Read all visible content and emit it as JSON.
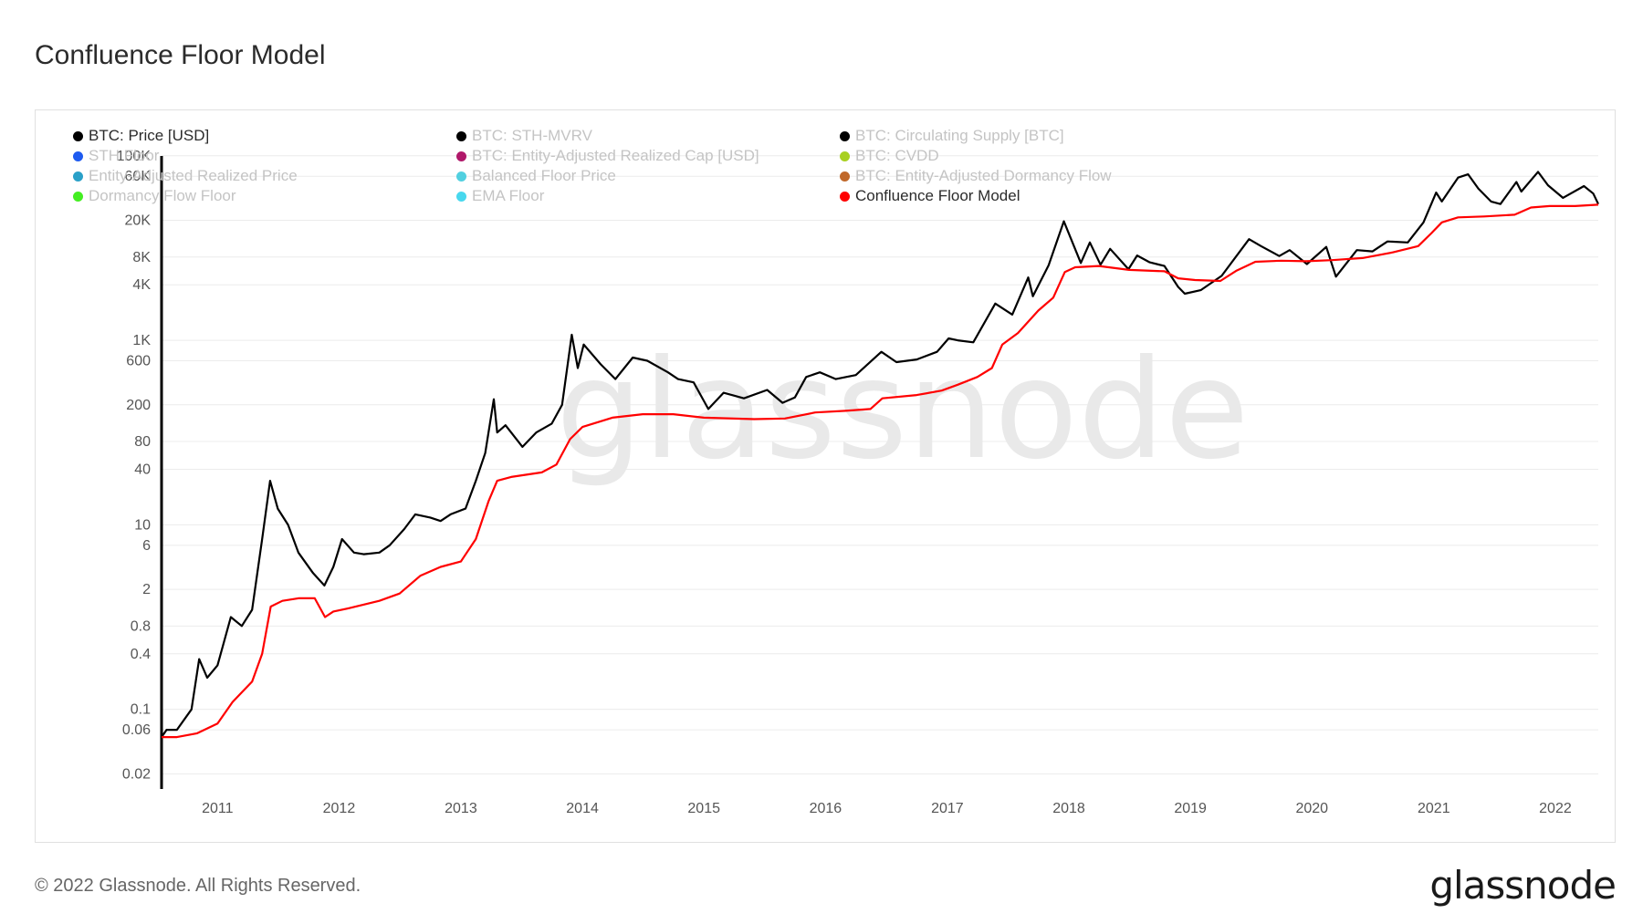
{
  "title": "Confluence Floor Model",
  "footer": {
    "copyright": "© 2022 Glassnode. All Rights Reserved.",
    "logo": "glassnode"
  },
  "watermark": "glassnode",
  "legend": [
    {
      "label": "BTC: Price [USD]",
      "color": "#000000",
      "active": true
    },
    {
      "label": "BTC: STH-MVRV",
      "color": "#000000",
      "active": false
    },
    {
      "label": "BTC: Circulating Supply [BTC]",
      "color": "#000000",
      "active": false
    },
    {
      "label": "STH Floor",
      "color": "#1e5bf0",
      "active": false
    },
    {
      "label": "BTC: Entity-Adjusted Realized Cap [USD]",
      "color": "#b0186a",
      "active": false
    },
    {
      "label": "BTC: CVDD",
      "color": "#a8d020",
      "active": false
    },
    {
      "label": "Entity-Adjusted Realized Price",
      "color": "#2aa0c8",
      "active": false
    },
    {
      "label": "Balanced Floor Price",
      "color": "#52d0e0",
      "active": false
    },
    {
      "label": "BTC: Entity-Adjusted Dormancy Flow",
      "color": "#c0682a",
      "active": false
    },
    {
      "label": "Dormancy Flow Floor",
      "color": "#44ee22",
      "active": false
    },
    {
      "label": "EMA Floor",
      "color": "#48d8ee",
      "active": false
    },
    {
      "label": "Confluence Floor Model",
      "color": "#ff0000",
      "active": true
    }
  ],
  "chart_data": {
    "type": "line",
    "y_scale": "log",
    "x_ticks": [
      "2011",
      "2012",
      "2013",
      "2014",
      "2015",
      "2016",
      "2017",
      "2018",
      "2019",
      "2020",
      "2021",
      "2022"
    ],
    "y_ticks": [
      {
        "value": 100000,
        "label": "100K"
      },
      {
        "value": 60000,
        "label": "60K"
      },
      {
        "value": 20000,
        "label": "20K"
      },
      {
        "value": 8000,
        "label": "8K"
      },
      {
        "value": 4000,
        "label": "4K"
      },
      {
        "value": 1000,
        "label": "1K"
      },
      {
        "value": 600,
        "label": "600"
      },
      {
        "value": 200,
        "label": "200"
      },
      {
        "value": 80,
        "label": "80"
      },
      {
        "value": 40,
        "label": "40"
      },
      {
        "value": 10,
        "label": "10"
      },
      {
        "value": 6,
        "label": "6"
      },
      {
        "value": 2,
        "label": "2"
      },
      {
        "value": 0.8,
        "label": "0.8"
      },
      {
        "value": 0.4,
        "label": "0.4"
      },
      {
        "value": 0.1,
        "label": "0.1"
      },
      {
        "value": 0.06,
        "label": "0.06"
      },
      {
        "value": 0.02,
        "label": "0.02"
      }
    ],
    "x_range": [
      "2010-07-17",
      "2022-05-10"
    ],
    "y_range": [
      0.015,
      150000
    ],
    "series": [
      {
        "name": "BTC: Price [USD]",
        "color": "#000000",
        "points": [
          [
            "2010-07-17",
            0.05
          ],
          [
            "2010-08-01",
            0.06
          ],
          [
            "2010-09-01",
            0.06
          ],
          [
            "2010-10-15",
            0.1
          ],
          [
            "2010-11-07",
            0.35
          ],
          [
            "2010-12-01",
            0.22
          ],
          [
            "2011-01-01",
            0.3
          ],
          [
            "2011-02-10",
            1.0
          ],
          [
            "2011-03-15",
            0.8
          ],
          [
            "2011-04-15",
            1.2
          ],
          [
            "2011-05-15",
            7
          ],
          [
            "2011-06-08",
            30
          ],
          [
            "2011-07-01",
            15
          ],
          [
            "2011-08-01",
            10
          ],
          [
            "2011-09-01",
            5
          ],
          [
            "2011-10-15",
            3
          ],
          [
            "2011-11-18",
            2.2
          ],
          [
            "2011-12-15",
            3.5
          ],
          [
            "2012-01-10",
            7
          ],
          [
            "2012-02-15",
            5
          ],
          [
            "2012-03-15",
            4.8
          ],
          [
            "2012-05-01",
            5
          ],
          [
            "2012-06-01",
            6
          ],
          [
            "2012-07-15",
            9
          ],
          [
            "2012-08-17",
            13
          ],
          [
            "2012-10-01",
            12
          ],
          [
            "2012-11-01",
            11
          ],
          [
            "2012-12-01",
            13
          ],
          [
            "2013-01-15",
            15
          ],
          [
            "2013-02-15",
            30
          ],
          [
            "2013-03-15",
            60
          ],
          [
            "2013-04-10",
            230
          ],
          [
            "2013-04-20",
            100
          ],
          [
            "2013-05-15",
            120
          ],
          [
            "2013-07-05",
            70
          ],
          [
            "2013-08-15",
            100
          ],
          [
            "2013-10-01",
            125
          ],
          [
            "2013-11-01",
            200
          ],
          [
            "2013-11-30",
            1150
          ],
          [
            "2013-12-18",
            500
          ],
          [
            "2014-01-05",
            900
          ],
          [
            "2014-02-25",
            550
          ],
          [
            "2014-04-10",
            380
          ],
          [
            "2014-06-01",
            650
          ],
          [
            "2014-07-15",
            600
          ],
          [
            "2014-09-15",
            450
          ],
          [
            "2014-10-15",
            380
          ],
          [
            "2014-12-01",
            350
          ],
          [
            "2015-01-14",
            180
          ],
          [
            "2015-03-01",
            270
          ],
          [
            "2015-05-01",
            235
          ],
          [
            "2015-07-10",
            290
          ],
          [
            "2015-08-25",
            210
          ],
          [
            "2015-10-01",
            240
          ],
          [
            "2015-11-04",
            400
          ],
          [
            "2015-12-15",
            450
          ],
          [
            "2016-02-01",
            380
          ],
          [
            "2016-04-01",
            420
          ],
          [
            "2016-06-17",
            750
          ],
          [
            "2016-08-01",
            580
          ],
          [
            "2016-10-01",
            620
          ],
          [
            "2016-12-01",
            750
          ],
          [
            "2017-01-05",
            1050
          ],
          [
            "2017-02-01",
            1000
          ],
          [
            "2017-03-20",
            950
          ],
          [
            "2017-05-25",
            2500
          ],
          [
            "2017-07-15",
            1900
          ],
          [
            "2017-09-01",
            4800
          ],
          [
            "2017-09-15",
            3000
          ],
          [
            "2017-11-01",
            6500
          ],
          [
            "2017-12-17",
            19500
          ],
          [
            "2018-02-06",
            6900
          ],
          [
            "2018-03-05",
            11500
          ],
          [
            "2018-04-06",
            6600
          ],
          [
            "2018-05-05",
            9800
          ],
          [
            "2018-06-29",
            5900
          ],
          [
            "2018-07-25",
            8300
          ],
          [
            "2018-09-01",
            7000
          ],
          [
            "2018-10-15",
            6400
          ],
          [
            "2018-11-25",
            3800
          ],
          [
            "2018-12-15",
            3200
          ],
          [
            "2019-02-01",
            3500
          ],
          [
            "2019-04-05",
            5000
          ],
          [
            "2019-06-26",
            12500
          ],
          [
            "2019-08-01",
            10500
          ],
          [
            "2019-09-25",
            8200
          ],
          [
            "2019-10-26",
            9500
          ],
          [
            "2019-12-17",
            6700
          ],
          [
            "2020-02-13",
            10300
          ],
          [
            "2020-03-13",
            4900
          ],
          [
            "2020-05-15",
            9500
          ],
          [
            "2020-07-01",
            9200
          ],
          [
            "2020-08-15",
            11800
          ],
          [
            "2020-10-15",
            11500
          ],
          [
            "2020-12-01",
            19000
          ],
          [
            "2021-01-08",
            40000
          ],
          [
            "2021-01-25",
            32000
          ],
          [
            "2021-03-15",
            58000
          ],
          [
            "2021-04-14",
            63000
          ],
          [
            "2021-05-15",
            44000
          ],
          [
            "2021-06-22",
            32000
          ],
          [
            "2021-07-20",
            30000
          ],
          [
            "2021-09-06",
            52000
          ],
          [
            "2021-09-21",
            41000
          ],
          [
            "2021-11-10",
            67000
          ],
          [
            "2021-12-10",
            48000
          ],
          [
            "2022-01-24",
            35000
          ],
          [
            "2022-03-28",
            47000
          ],
          [
            "2022-04-25",
            39000
          ],
          [
            "2022-05-10",
            30000
          ]
        ]
      },
      {
        "name": "Confluence Floor Model",
        "color": "#ff0000",
        "points": [
          [
            "2010-07-17",
            0.05
          ],
          [
            "2010-09-01",
            0.05
          ],
          [
            "2010-11-01",
            0.055
          ],
          [
            "2011-01-01",
            0.07
          ],
          [
            "2011-02-15",
            0.12
          ],
          [
            "2011-04-15",
            0.2
          ],
          [
            "2011-05-15",
            0.4
          ],
          [
            "2011-06-10",
            1.3
          ],
          [
            "2011-07-15",
            1.5
          ],
          [
            "2011-09-01",
            1.6
          ],
          [
            "2011-10-20",
            1.6
          ],
          [
            "2011-11-20",
            1.0
          ],
          [
            "2011-12-15",
            1.15
          ],
          [
            "2012-02-01",
            1.25
          ],
          [
            "2012-05-01",
            1.5
          ],
          [
            "2012-07-01",
            1.8
          ],
          [
            "2012-09-01",
            2.8
          ],
          [
            "2012-11-01",
            3.5
          ],
          [
            "2013-01-01",
            4.0
          ],
          [
            "2013-02-15",
            7
          ],
          [
            "2013-03-25",
            18
          ],
          [
            "2013-04-20",
            30
          ],
          [
            "2013-06-01",
            33
          ],
          [
            "2013-09-01",
            37
          ],
          [
            "2013-10-15",
            45
          ],
          [
            "2013-11-25",
            85
          ],
          [
            "2014-01-01",
            115
          ],
          [
            "2014-04-01",
            145
          ],
          [
            "2014-07-01",
            158
          ],
          [
            "2014-10-01",
            158
          ],
          [
            "2015-01-01",
            145
          ],
          [
            "2015-06-01",
            140
          ],
          [
            "2015-09-01",
            142
          ],
          [
            "2015-12-01",
            165
          ],
          [
            "2016-03-01",
            172
          ],
          [
            "2016-05-15",
            180
          ],
          [
            "2016-06-20",
            235
          ],
          [
            "2016-10-01",
            255
          ],
          [
            "2016-12-15",
            285
          ],
          [
            "2017-02-01",
            330
          ],
          [
            "2017-04-01",
            400
          ],
          [
            "2017-05-15",
            500
          ],
          [
            "2017-06-15",
            900
          ],
          [
            "2017-08-01",
            1200
          ],
          [
            "2017-10-01",
            2100
          ],
          [
            "2017-11-15",
            2900
          ],
          [
            "2017-12-20",
            5500
          ],
          [
            "2018-01-20",
            6200
          ],
          [
            "2018-04-01",
            6400
          ],
          [
            "2018-07-01",
            5800
          ],
          [
            "2018-10-15",
            5600
          ],
          [
            "2018-11-25",
            4700
          ],
          [
            "2019-01-15",
            4500
          ],
          [
            "2019-04-01",
            4400
          ],
          [
            "2019-05-20",
            5700
          ],
          [
            "2019-07-15",
            7100
          ],
          [
            "2019-10-01",
            7300
          ],
          [
            "2019-12-15",
            7200
          ],
          [
            "2020-03-01",
            7400
          ],
          [
            "2020-06-01",
            7800
          ],
          [
            "2020-09-01",
            9000
          ],
          [
            "2020-11-15",
            10500
          ],
          [
            "2020-12-25",
            14500
          ],
          [
            "2021-01-25",
            19000
          ],
          [
            "2021-03-15",
            21500
          ],
          [
            "2021-06-01",
            22000
          ],
          [
            "2021-09-01",
            23000
          ],
          [
            "2021-10-20",
            27500
          ],
          [
            "2021-12-15",
            28500
          ],
          [
            "2022-03-01",
            28500
          ],
          [
            "2022-05-10",
            29500
          ]
        ]
      }
    ]
  }
}
